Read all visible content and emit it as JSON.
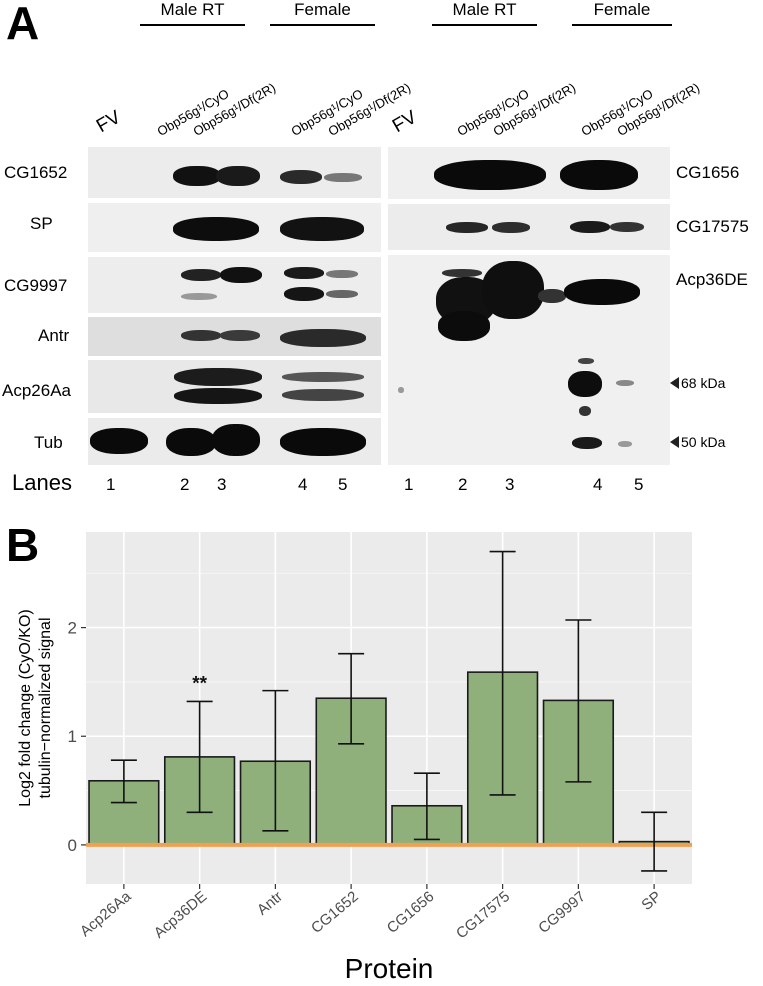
{
  "panel_a": {
    "letter": "A",
    "groups": [
      "Male RT",
      "Female",
      "Male RT",
      "Female"
    ],
    "fv_label": "FV",
    "lane_headers": [
      "Obp56g¹/CyO",
      "Obp56g¹/Df(2R)"
    ],
    "left_rows": [
      "CG1652",
      "SP",
      "CG9997",
      "Antr",
      "Acp26Aa",
      "Tub"
    ],
    "right_rows": [
      "CG1656",
      "CG17575",
      "Acp36DE"
    ],
    "markers": [
      "68 kDa",
      "50 kDa"
    ],
    "lanes_label": "Lanes",
    "lane_numbers": [
      "1",
      "2",
      "3",
      "4",
      "5"
    ]
  },
  "panel_b": {
    "letter": "B"
  },
  "chart_data": {
    "type": "bar",
    "title": "",
    "xlabel": "Protein",
    "ylabel": [
      "Log2 fold change (CyO/KO)",
      "tubulin−normalized signal"
    ],
    "categories": [
      "Acp26Aa",
      "Acp36DE",
      "Antr",
      "CG1652",
      "CG1656",
      "CG17575",
      "CG9997",
      "SP"
    ],
    "values": [
      0.59,
      0.81,
      0.77,
      1.35,
      0.36,
      1.59,
      1.33,
      0.03
    ],
    "error_low": [
      0.39,
      0.3,
      0.13,
      0.93,
      0.05,
      0.46,
      0.58,
      -0.24
    ],
    "error_high": [
      0.78,
      1.32,
      1.42,
      1.76,
      0.66,
      2.7,
      2.07,
      0.3
    ],
    "annotations": [
      {
        "category": "Acp36DE",
        "text": "**"
      }
    ],
    "yticks": [
      0,
      1,
      2
    ],
    "ylim": [
      -0.36,
      2.88
    ],
    "reference_line": 0,
    "grid": true,
    "colors": {
      "bar": "#8fb07a",
      "bar_edge": "#1a1a1a",
      "panel_bg": "#ebebeb",
      "grid": "#ffffff",
      "ref_line": "#f0a050"
    }
  }
}
